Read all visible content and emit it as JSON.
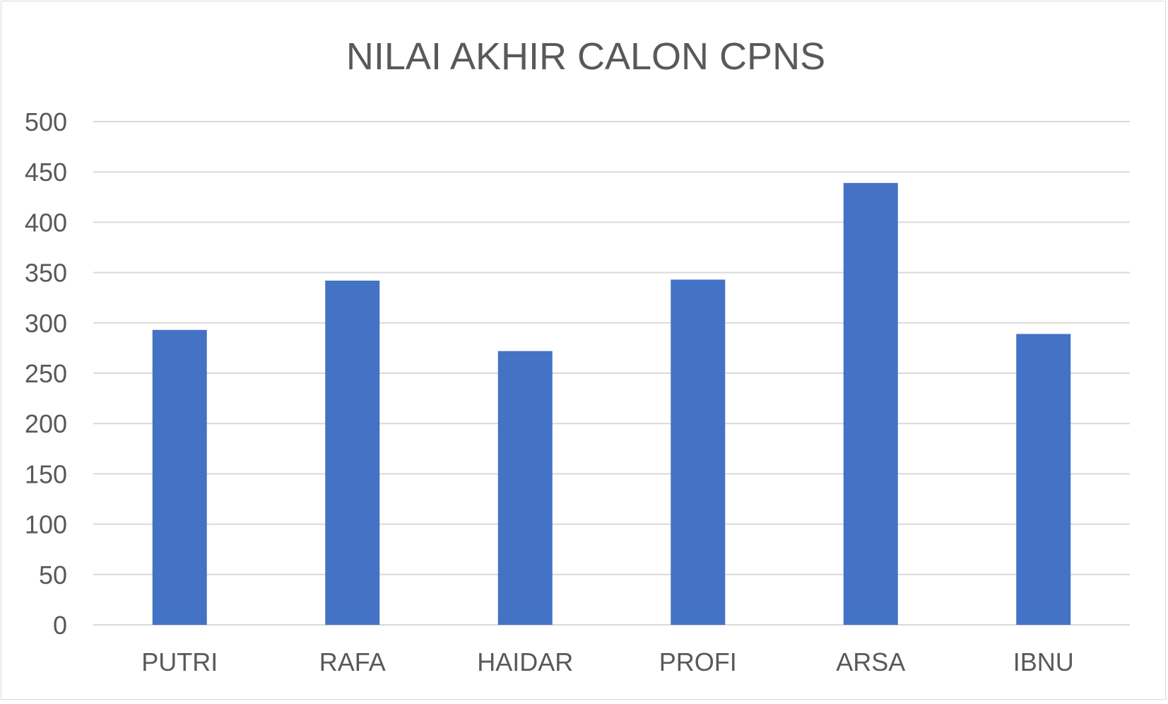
{
  "chart_data": {
    "type": "bar",
    "title": "NILAI AKHIR CALON CPNS",
    "xlabel": "",
    "ylabel": "",
    "categories": [
      "PUTRI",
      "RAFA",
      "HAIDAR",
      "PROFI",
      "ARSA",
      "IBNU"
    ],
    "values": [
      293,
      342,
      272,
      343,
      439,
      289
    ],
    "ylim": [
      0,
      500
    ],
    "yticks": [
      0,
      50,
      100,
      150,
      200,
      250,
      300,
      350,
      400,
      450,
      500
    ],
    "grid": true,
    "legend": "none",
    "colors": {
      "bar": "#4472C4",
      "grid": "#D9D9D9",
      "text": "#595959"
    }
  }
}
